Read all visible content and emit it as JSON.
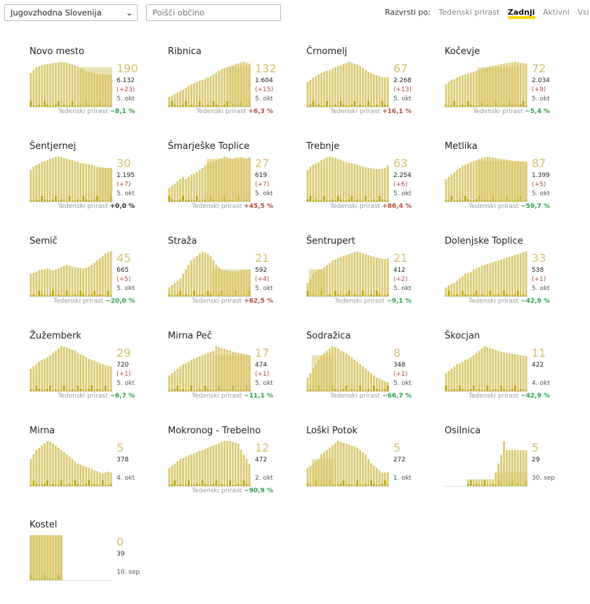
{
  "region_select": {
    "value": "Jugovzhodna Slovenija"
  },
  "search": {
    "placeholder": "Poišči občino"
  },
  "sort": {
    "label": "Razvrsti po:",
    "options": [
      "Tedenski prirast",
      "Zadnji",
      "Aktivni",
      "Vsi"
    ],
    "active": 1
  },
  "weekly_label": "Tedenski prirast",
  "colors": {
    "bar": "#d9c86e",
    "bar_dark": "#b8a200",
    "accent": "#ffd400",
    "up": "#b04a3a",
    "down": "#2aa04a"
  },
  "municipalities": [
    {
      "name": "Novo mesto",
      "big": "190",
      "total": "6.132",
      "delta": "(+23)",
      "date": "5. okt",
      "weekly": "−8,1 %",
      "trend": "down",
      "shape": [
        0.75,
        0.82,
        0.88,
        0.9,
        0.92,
        0.94,
        0.95,
        0.96,
        0.97,
        0.98,
        0.99,
        1.0,
        0.99,
        0.98,
        0.96,
        0.94,
        0.92,
        0.9,
        0.86,
        0.83,
        0.8,
        0.78,
        0.76,
        0.74,
        0.73,
        0.72,
        0.72,
        0.71,
        0.72,
        0.7
      ],
      "spike": [
        18,
        29
      ],
      "spike_h": 0.88
    },
    {
      "name": "Ribnica",
      "big": "132",
      "total": "1.604",
      "delta": "(+15)",
      "date": "5. okt",
      "weekly": "+6,3 %",
      "trend": "up",
      "shape": [
        0.22,
        0.25,
        0.28,
        0.32,
        0.35,
        0.38,
        0.42,
        0.46,
        0.5,
        0.52,
        0.55,
        0.58,
        0.6,
        0.62,
        0.65,
        0.68,
        0.72,
        0.76,
        0.8,
        0.84,
        0.86,
        0.88,
        0.9,
        0.92,
        0.95,
        0.97,
        0.99,
        1.0,
        0.98,
        0.96
      ],
      "spike": [
        22,
        29
      ],
      "spike_h": 0.9
    },
    {
      "name": "Črnomelj",
      "big": "67",
      "total": "2.268",
      "delta": "(+13)",
      "date": "5. okt",
      "weekly": "+16,1 %",
      "trend": "up",
      "shape": [
        0.55,
        0.6,
        0.65,
        0.68,
        0.72,
        0.75,
        0.78,
        0.8,
        0.82,
        0.85,
        0.88,
        0.9,
        0.92,
        0.95,
        0.97,
        1.0,
        0.98,
        0.96,
        0.94,
        0.9,
        0.86,
        0.82,
        0.78,
        0.75,
        0.72,
        0.7,
        0.68,
        0.66,
        0.65,
        0.66
      ],
      "spike": [
        0,
        0
      ],
      "spike_h": 0
    },
    {
      "name": "Kočevje",
      "big": "72",
      "total": "2.034",
      "delta": "(+9)",
      "date": "5. okt",
      "weekly": "−5,4 %",
      "trend": "down",
      "shape": [
        0.5,
        0.55,
        0.6,
        0.62,
        0.65,
        0.68,
        0.7,
        0.72,
        0.74,
        0.76,
        0.78,
        0.8,
        0.82,
        0.84,
        0.86,
        0.88,
        0.9,
        0.91,
        0.92,
        0.93,
        0.95,
        0.96,
        0.97,
        0.98,
        0.99,
        1.0,
        0.99,
        0.98,
        0.97,
        0.96
      ],
      "spike": [
        12,
        26
      ],
      "spike_h": 0.88
    },
    {
      "name": "Šentjernej",
      "big": "30",
      "total": "1.195",
      "delta": "(+7)",
      "date": "5. okt",
      "weekly": "+0,0 %",
      "trend": "flat",
      "shape": [
        0.7,
        0.78,
        0.82,
        0.85,
        0.88,
        0.9,
        0.92,
        0.95,
        0.97,
        0.99,
        1.0,
        0.99,
        0.97,
        0.95,
        0.93,
        0.92,
        0.9,
        0.88,
        0.86,
        0.85,
        0.84,
        0.83,
        0.82,
        0.8,
        0.78,
        0.77,
        0.76,
        0.75,
        0.74,
        0.75
      ],
      "spike": [
        25,
        29
      ],
      "spike_h": 0.75
    },
    {
      "name": "Šmarješke Toplice",
      "big": "27",
      "total": "619",
      "delta": "(+7)",
      "date": "5. okt",
      "weekly": "+45,5 %",
      "trend": "up",
      "shape": [
        0.3,
        0.35,
        0.4,
        0.45,
        0.5,
        0.55,
        0.5,
        0.55,
        0.6,
        0.62,
        0.65,
        0.7,
        0.75,
        0.8,
        0.85,
        0.88,
        0.9,
        0.92,
        0.95,
        0.97,
        1.0,
        0.98,
        0.96,
        0.95,
        0.97,
        0.98,
        0.99,
        0.97,
        0.96,
        0.98
      ],
      "spike": [
        14,
        29
      ],
      "spike_h": 0.95
    },
    {
      "name": "Trebnje",
      "big": "63",
      "total": "2.254",
      "delta": "(+6)",
      "date": "5. okt",
      "weekly": "+86,4 %",
      "trend": "up",
      "shape": [
        0.7,
        0.78,
        0.82,
        0.85,
        0.88,
        0.92,
        0.95,
        0.98,
        1.0,
        0.99,
        0.97,
        0.95,
        0.93,
        0.9,
        0.88,
        0.86,
        0.85,
        0.84,
        0.82,
        0.8,
        0.78,
        0.76,
        0.75,
        0.74,
        0.73,
        0.72,
        0.72,
        0.73,
        0.75,
        0.8
      ],
      "spike": [
        0,
        0
      ],
      "spike_h": 0
    },
    {
      "name": "Metlika",
      "big": "87",
      "total": "1.399",
      "delta": "(+5)",
      "date": "5. okt",
      "weekly": "−59,7 %",
      "trend": "down",
      "shape": [
        0.5,
        0.55,
        0.6,
        0.65,
        0.7,
        0.75,
        0.8,
        0.82,
        0.85,
        0.88,
        0.9,
        0.92,
        0.95,
        0.97,
        0.99,
        1.0,
        0.99,
        0.98,
        0.97,
        0.96,
        0.95,
        0.94,
        0.93,
        0.92,
        0.91,
        0.9,
        0.9,
        0.89,
        0.88,
        0.87
      ],
      "spike": [
        12,
        29
      ],
      "spike_h": 0.9
    },
    {
      "name": "Semič",
      "big": "45",
      "total": "665",
      "delta": "(+5)",
      "date": "5. okt",
      "weekly": "−20,0 %",
      "trend": "down",
      "shape": [
        0.5,
        0.52,
        0.55,
        0.58,
        0.6,
        0.6,
        0.62,
        0.6,
        0.58,
        0.6,
        0.62,
        0.65,
        0.68,
        0.7,
        0.68,
        0.66,
        0.65,
        0.64,
        0.63,
        0.62,
        0.64,
        0.66,
        0.7,
        0.75,
        0.8,
        0.85,
        0.9,
        0.95,
        0.98,
        1.0
      ],
      "spike": [
        0,
        0
      ],
      "spike_h": 0
    },
    {
      "name": "Straža",
      "big": "21",
      "total": "592",
      "delta": "(+4)",
      "date": "5. okt",
      "weekly": "+62,5 %",
      "trend": "up",
      "shape": [
        0.2,
        0.25,
        0.3,
        0.35,
        0.4,
        0.5,
        0.6,
        0.7,
        0.8,
        0.85,
        0.9,
        0.95,
        1.0,
        0.98,
        0.95,
        0.9,
        0.8,
        0.7,
        0.65,
        0.6,
        0.58,
        0.56,
        0.55,
        0.54,
        0.55,
        0.56,
        0.57,
        0.58,
        0.59,
        0.6
      ],
      "spike": [
        16,
        29
      ],
      "spike_h": 0.6
    },
    {
      "name": "Šentrupert",
      "big": "21",
      "total": "412",
      "delta": "(+2)",
      "date": "5. okt",
      "weekly": "−9,1 %",
      "trend": "down",
      "shape": [
        0.3,
        0.4,
        0.5,
        0.55,
        0.6,
        0.6,
        0.65,
        0.7,
        0.75,
        0.8,
        0.82,
        0.85,
        0.88,
        0.9,
        0.92,
        0.94,
        0.96,
        0.98,
        1.0,
        0.98,
        0.96,
        0.94,
        0.92,
        0.9,
        0.88,
        0.86,
        0.85,
        0.84,
        0.83,
        0.85
      ],
      "spike": [
        1,
        6
      ],
      "spike_h": 0.6
    },
    {
      "name": "Dolenjske Toplice",
      "big": "33",
      "total": "538",
      "delta": "(+1)",
      "date": "5. okt",
      "weekly": "−42,9 %",
      "trend": "down",
      "shape": [
        0.2,
        0.25,
        0.28,
        0.3,
        0.35,
        0.4,
        0.45,
        0.5,
        0.52,
        0.55,
        0.6,
        0.62,
        0.65,
        0.68,
        0.7,
        0.72,
        0.74,
        0.76,
        0.78,
        0.8,
        0.82,
        0.84,
        0.86,
        0.88,
        0.9,
        0.92,
        0.94,
        0.96,
        0.98,
        1.0
      ],
      "spike": [
        0,
        0
      ],
      "spike_h": 0
    },
    {
      "name": "Žužemberk",
      "big": "29",
      "total": "720",
      "delta": "(+1)",
      "date": "5. okt",
      "weekly": "−6,7 %",
      "trend": "down",
      "shape": [
        0.5,
        0.55,
        0.6,
        0.65,
        0.7,
        0.72,
        0.75,
        0.8,
        0.85,
        0.9,
        0.95,
        1.0,
        0.99,
        0.97,
        0.95,
        0.92,
        0.9,
        0.85,
        0.82,
        0.8,
        0.76,
        0.72,
        0.7,
        0.68,
        0.65,
        0.62,
        0.6,
        0.58,
        0.56,
        0.55
      ],
      "spike": [
        0,
        0
      ],
      "spike_h": 0
    },
    {
      "name": "Mirna Peč",
      "big": "17",
      "total": "474",
      "delta": "(+1)",
      "date": "5. okt",
      "weekly": "−11,1 %",
      "trend": "down",
      "shape": [
        0.35,
        0.4,
        0.45,
        0.5,
        0.55,
        0.6,
        0.62,
        0.65,
        0.7,
        0.72,
        0.75,
        0.78,
        0.8,
        0.82,
        0.85,
        0.88,
        0.9,
        1.0,
        0.98,
        0.96,
        0.94,
        0.92,
        0.9,
        0.88,
        0.86,
        0.85,
        0.84,
        0.83,
        0.82,
        0.8
      ],
      "spike": [
        17,
        29
      ],
      "spike_h": 0.8
    },
    {
      "name": "Sodražica",
      "big": "8",
      "total": "348",
      "delta": "(+1)",
      "date": "5. okt",
      "weekly": "−66,7 %",
      "trend": "down",
      "shape": [
        0.3,
        0.4,
        0.5,
        0.6,
        0.7,
        0.8,
        0.85,
        0.9,
        0.95,
        1.0,
        0.98,
        0.95,
        0.9,
        0.88,
        0.85,
        0.8,
        0.75,
        0.7,
        0.65,
        0.6,
        0.55,
        0.5,
        0.45,
        0.4,
        0.35,
        0.3,
        0.28,
        0.25,
        0.22,
        0.2
      ],
      "spike": [
        2,
        9
      ],
      "spike_h": 0.8
    },
    {
      "name": "Škocjan",
      "big": "11",
      "total": "422",
      "delta": "",
      "date": "4. okt",
      "weekly": "−42,9 %",
      "trend": "down",
      "shape": [
        0.4,
        0.45,
        0.5,
        0.55,
        0.6,
        0.62,
        0.65,
        0.7,
        0.72,
        0.75,
        0.8,
        0.85,
        0.9,
        0.95,
        1.0,
        0.98,
        0.96,
        0.94,
        0.92,
        0.9,
        0.88,
        0.86,
        0.85,
        0.84,
        0.83,
        0.82,
        0.81,
        0.8,
        0.79,
        0.78
      ],
      "spike": [
        0,
        0
      ],
      "spike_h": 0
    },
    {
      "name": "Mirna",
      "big": "5",
      "total": "378",
      "delta": "",
      "date": "4. okt",
      "weekly": "",
      "trend": "flat",
      "shape": [
        0.6,
        0.7,
        0.8,
        0.85,
        0.9,
        0.95,
        1.0,
        0.98,
        0.95,
        0.9,
        0.85,
        0.8,
        0.75,
        0.7,
        0.65,
        0.6,
        0.55,
        0.5,
        0.48,
        0.45,
        0.42,
        0.4,
        0.38,
        0.35,
        0.33,
        0.3,
        0.28,
        0.3,
        0.32,
        0.3
      ],
      "spike": [
        0,
        0
      ],
      "spike_h": 0
    },
    {
      "name": "Mokronog - Trebelno",
      "big": "12",
      "total": "472",
      "delta": "",
      "date": "2. okt",
      "weekly": "−90,9 %",
      "trend": "down",
      "shape": [
        0.4,
        0.45,
        0.5,
        0.55,
        0.6,
        0.62,
        0.65,
        0.68,
        0.7,
        0.72,
        0.75,
        0.78,
        0.8,
        0.82,
        0.85,
        0.88,
        0.9,
        0.92,
        0.95,
        0.98,
        1.0,
        1.0,
        1.0,
        0.98,
        0.96,
        0.94,
        0.8,
        0.7,
        0.6,
        0.5
      ],
      "spike": [
        0,
        0
      ],
      "spike_h": 0
    },
    {
      "name": "Loški Potok",
      "big": "5",
      "total": "272",
      "delta": "",
      "date": "1. okt",
      "weekly": "",
      "trend": "flat",
      "shape": [
        0.4,
        0.45,
        0.5,
        0.55,
        0.6,
        0.7,
        0.75,
        0.8,
        0.85,
        0.9,
        0.95,
        1.0,
        0.98,
        0.96,
        0.94,
        0.92,
        0.9,
        0.88,
        0.85,
        0.8,
        0.75,
        0.7,
        0.6,
        0.5,
        0.45,
        0.4,
        0.35,
        0.3,
        0.3,
        0.3
      ],
      "spike": [
        2,
        9
      ],
      "spike_h": 0.6
    },
    {
      "name": "Osilnica",
      "big": "5",
      "total": "29",
      "delta": "",
      "date": "30. sep",
      "weekly": "",
      "trend": "flat",
      "shape": [
        0,
        0,
        0,
        0,
        0,
        0,
        0,
        0,
        0.15,
        0.15,
        0.15,
        0.15,
        0.15,
        0.15,
        0.15,
        0.15,
        0.15,
        0.15,
        0.3,
        0.5,
        0.7,
        1.0,
        0.8,
        0.8,
        0.8,
        0.8,
        0.8,
        0.8,
        0.8,
        0.8
      ],
      "spike": [
        19,
        29
      ],
      "spike_h": 0.3
    },
    {
      "name": "Kostel",
      "big": "0",
      "total": "39",
      "delta": "",
      "date": "10. sep",
      "weekly": "",
      "trend": "flat",
      "shape": [
        1,
        1,
        1,
        1,
        1,
        1,
        1,
        1,
        1,
        1,
        1,
        1,
        0,
        0,
        0,
        0,
        0,
        0,
        0,
        0,
        0,
        0,
        0,
        0,
        0,
        0,
        0,
        0,
        0,
        0
      ],
      "spike": [
        0,
        11
      ],
      "spike_h": 1.0
    }
  ]
}
